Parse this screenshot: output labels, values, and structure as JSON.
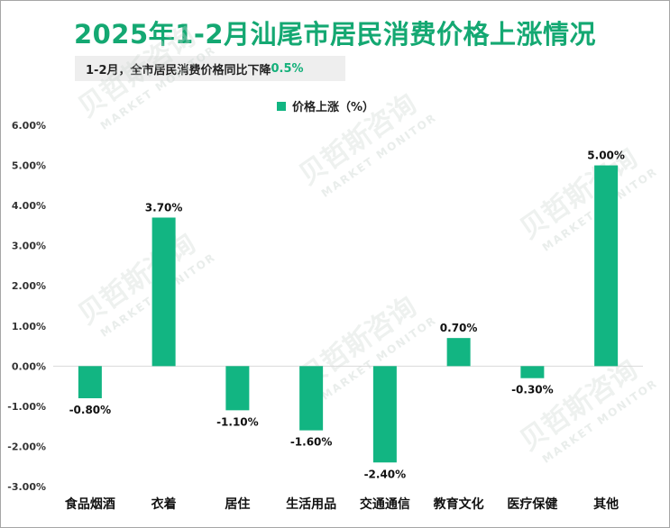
{
  "title": "2025年1-2月汕尾市居民消费价格上涨情况",
  "subtitle": {
    "prefix": "1-2月，全市居民消费价格同比下降",
    "highlight": "0.5%"
  },
  "watermark": {
    "cn": "贝哲斯咨询",
    "en": "MARKET MONITOR"
  },
  "colors": {
    "bar": "#12b582",
    "title": "#14a872",
    "highlight": "#14b07a"
  },
  "chart_data": {
    "type": "bar",
    "categories": [
      "食品烟酒",
      "衣着",
      "居住",
      "生活用品",
      "交通通信",
      "教育文化",
      "医疗保健",
      "其他"
    ],
    "series": [
      {
        "name": "价格上涨（%）",
        "values": [
          -0.8,
          3.7,
          -1.1,
          -1.6,
          -2.4,
          0.7,
          -0.3,
          5.0
        ]
      }
    ],
    "value_labels": [
      "-0.80%",
      "3.70%",
      "-1.10%",
      "-1.60%",
      "-2.40%",
      "0.70%",
      "-0.30%",
      "5.00%"
    ],
    "ylim": [
      -3.0,
      6.0
    ],
    "yticks": [
      "6.00%",
      "5.00%",
      "4.00%",
      "3.00%",
      "2.00%",
      "1.00%",
      "0.00%",
      "-1.00%",
      "-2.00%",
      "-3.00%"
    ],
    "xlabel": "",
    "ylabel": "",
    "legend": "top",
    "grid": false
  }
}
